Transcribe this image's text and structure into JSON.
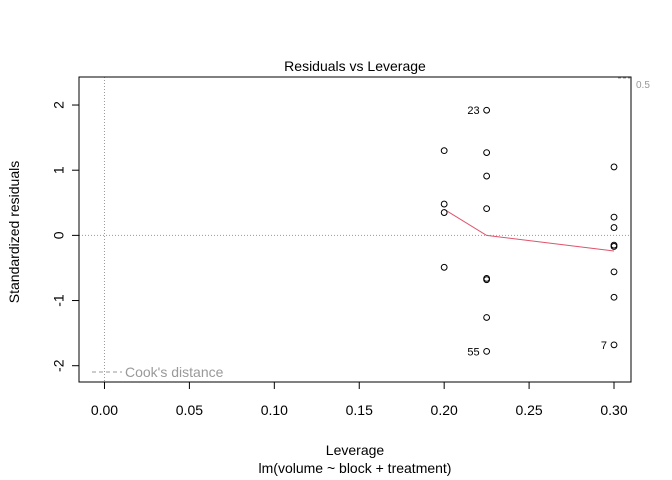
{
  "chart_data": {
    "type": "scatter",
    "title": "Residuals vs Leverage",
    "xlabel": "Leverage",
    "sublabel": "lm(volume ~ block + treatment)",
    "ylabel": "Standardized residuals",
    "xlim": [
      -0.015,
      0.31
    ],
    "ylim": [
      -2.25,
      2.43
    ],
    "xticks": [
      0.0,
      0.05,
      0.1,
      0.15,
      0.2,
      0.25,
      0.3
    ],
    "xtick_labels": [
      "0.00",
      "0.05",
      "0.10",
      "0.15",
      "0.20",
      "0.25",
      "0.30"
    ],
    "yticks": [
      -2,
      -1,
      0,
      1,
      2
    ],
    "ytick_labels": [
      "-2",
      "-1",
      "0",
      "1",
      "2"
    ],
    "points": [
      {
        "x": 0.2,
        "y": 1.3
      },
      {
        "x": 0.2,
        "y": 0.48
      },
      {
        "x": 0.2,
        "y": 0.35
      },
      {
        "x": 0.2,
        "y": -0.49
      },
      {
        "x": 0.225,
        "y": 1.92
      },
      {
        "x": 0.225,
        "y": 1.27
      },
      {
        "x": 0.225,
        "y": 0.91
      },
      {
        "x": 0.225,
        "y": 0.41
      },
      {
        "x": 0.225,
        "y": -0.66
      },
      {
        "x": 0.225,
        "y": -0.68
      },
      {
        "x": 0.225,
        "y": -1.26
      },
      {
        "x": 0.225,
        "y": -1.78
      },
      {
        "x": 0.3,
        "y": 1.05
      },
      {
        "x": 0.3,
        "y": 0.28
      },
      {
        "x": 0.3,
        "y": 0.12
      },
      {
        "x": 0.3,
        "y": -0.15
      },
      {
        "x": 0.3,
        "y": -0.17
      },
      {
        "x": 0.3,
        "y": -0.56
      },
      {
        "x": 0.3,
        "y": -0.95
      },
      {
        "x": 0.3,
        "y": -1.68
      }
    ],
    "point_labels": [
      {
        "text": "23",
        "x": 0.225,
        "y": 1.92
      },
      {
        "text": "55",
        "x": 0.225,
        "y": -1.78
      },
      {
        "text": "7",
        "x": 0.3,
        "y": -1.68
      }
    ],
    "smooth_line": [
      {
        "x": 0.2,
        "y": 0.4
      },
      {
        "x": 0.225,
        "y": 0.0
      },
      {
        "x": 0.3,
        "y": -0.24
      }
    ],
    "cooks_contour_label": "0.5",
    "legend": {
      "label": "Cook's distance",
      "placement": "bottom-left"
    },
    "colors": {
      "points": "#000000",
      "smooth": "#df536b",
      "reference": "#999999",
      "cook": "#999999"
    }
  }
}
